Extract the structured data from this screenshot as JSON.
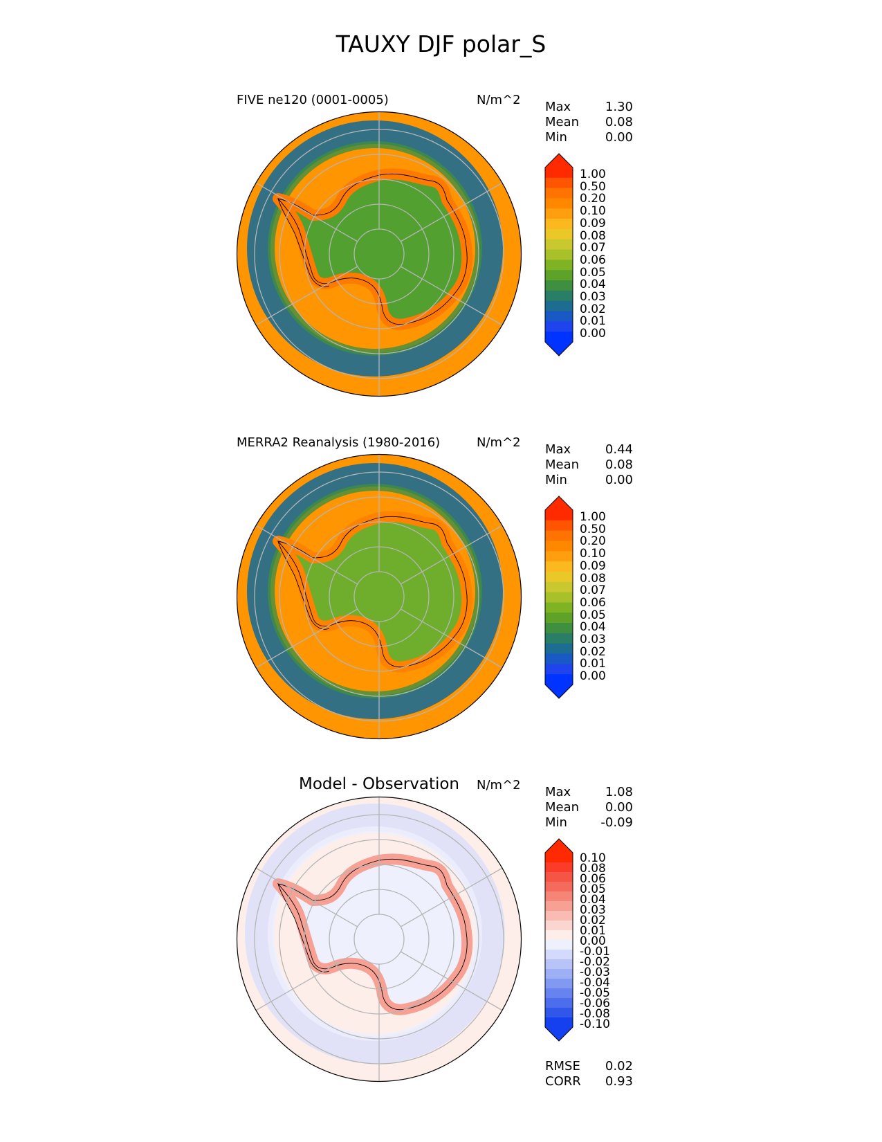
{
  "figure": {
    "title": "TAUXY DJF polar_S"
  },
  "panels": [
    {
      "id": "model",
      "title": "FIVE ne120 (0001-0005)",
      "units": "N/m^2",
      "stats": [
        {
          "label": "Max",
          "value": "1.30"
        },
        {
          "label": "Mean",
          "value": "0.08"
        },
        {
          "label": "Min",
          "value": "0.00"
        }
      ],
      "colorbar": {
        "ticks": [
          "1.00",
          "0.50",
          "0.20",
          "0.10",
          "0.09",
          "0.08",
          "0.07",
          "0.06",
          "0.05",
          "0.04",
          "0.03",
          "0.02",
          "0.01",
          "0.00"
        ],
        "colors": [
          "#ff2a00",
          "#ff5500",
          "#ff7300",
          "#ff8800",
          "#ff9f0f",
          "#fbb91f",
          "#e9c828",
          "#c9c92f",
          "#a8c12a",
          "#7eb323",
          "#5fa22a",
          "#3f8f40",
          "#2a7d66",
          "#1d6c92",
          "#1859c5",
          "#1f44ee",
          "#0033ff"
        ],
        "overflow_top": "#ff2a00",
        "overflow_bottom": "#0033ff"
      },
      "map": {
        "ocean": "#ff9500",
        "ring": "#1d6c92",
        "land": "#52a030",
        "coast_band": "#ff7a00"
      }
    },
    {
      "id": "obs",
      "title": "MERRA2 Reanalysis (1980-2016)",
      "units": "N/m^2",
      "stats": [
        {
          "label": "Max",
          "value": "0.44"
        },
        {
          "label": "Mean",
          "value": "0.08"
        },
        {
          "label": "Min",
          "value": "0.00"
        }
      ],
      "colorbar": {
        "ticks": [
          "1.00",
          "0.50",
          "0.20",
          "0.10",
          "0.09",
          "0.08",
          "0.07",
          "0.06",
          "0.05",
          "0.04",
          "0.03",
          "0.02",
          "0.01",
          "0.00"
        ],
        "colors": [
          "#ff2a00",
          "#ff5500",
          "#ff7300",
          "#ff8800",
          "#ff9f0f",
          "#fbb91f",
          "#e9c828",
          "#c9c92f",
          "#a8c12a",
          "#7eb323",
          "#5fa22a",
          "#3f8f40",
          "#2a7d66",
          "#1d6c92",
          "#1859c5",
          "#1f44ee",
          "#0033ff"
        ],
        "overflow_top": "#ff2a00",
        "overflow_bottom": "#0033ff"
      },
      "map": {
        "ocean": "#ff9500",
        "ring": "#1d6c92",
        "land": "#6fae2c",
        "coast_band": "#ff8200"
      }
    },
    {
      "id": "diff",
      "title": "Model - Observation",
      "units": "N/m^2",
      "stats": [
        {
          "label": "Max",
          "value": "1.08"
        },
        {
          "label": "Mean",
          "value": "0.00"
        },
        {
          "label": "Min",
          "value": "-0.09"
        }
      ],
      "colorbar": {
        "ticks": [
          "0.10",
          "0.08",
          "0.06",
          "0.05",
          "0.04",
          "0.03",
          "0.02",
          "0.01",
          "0.00",
          "-0.01",
          "-0.02",
          "-0.03",
          "-0.04",
          "-0.05",
          "-0.06",
          "-0.08",
          "-0.10"
        ],
        "colors": [
          "#ff2a00",
          "#fb3c28",
          "#f65444",
          "#f46a5c",
          "#f58677",
          "#f7a094",
          "#f9bbb2",
          "#fbd5cf",
          "#fdeeea",
          "#eef0fd",
          "#d3dafb",
          "#b8c4f8",
          "#9daff5",
          "#8299f2",
          "#6783ef",
          "#4c6dec",
          "#3057ea",
          "#1540f0"
        ],
        "overflow_top": "#ff2a00",
        "overflow_bottom": "#1540f0"
      },
      "map": {
        "ocean": "#fdeeea",
        "ring": "#d9defa",
        "land": "#eef0fd",
        "coast_band": "#f7a094"
      },
      "metrics": [
        {
          "label": "RMSE",
          "value": "0.02"
        },
        {
          "label": "CORR",
          "value": "0.93"
        }
      ]
    }
  ],
  "chart_data": {
    "type": "heatmap",
    "title": "TAUXY DJF polar_S",
    "projection": "south-polar-stereographic",
    "series": [
      {
        "name": "FIVE ne120 (0001-0005)",
        "units": "N/m^2",
        "max": 1.3,
        "mean": 0.08,
        "min": 0.0
      },
      {
        "name": "MERRA2 Reanalysis (1980-2016)",
        "units": "N/m^2",
        "max": 0.44,
        "mean": 0.08,
        "min": 0.0
      },
      {
        "name": "Model - Observation",
        "units": "N/m^2",
        "max": 1.08,
        "mean": 0.0,
        "min": -0.09,
        "rmse": 0.02,
        "corr": 0.93
      }
    ],
    "levels_main": [
      0.0,
      0.01,
      0.02,
      0.03,
      0.04,
      0.05,
      0.06,
      0.07,
      0.08,
      0.09,
      0.1,
      0.2,
      0.5,
      1.0
    ],
    "levels_diff": [
      -0.1,
      -0.08,
      -0.06,
      -0.05,
      -0.04,
      -0.03,
      -0.02,
      -0.01,
      0.0,
      0.01,
      0.02,
      0.03,
      0.04,
      0.05,
      0.06,
      0.08,
      0.1
    ]
  }
}
